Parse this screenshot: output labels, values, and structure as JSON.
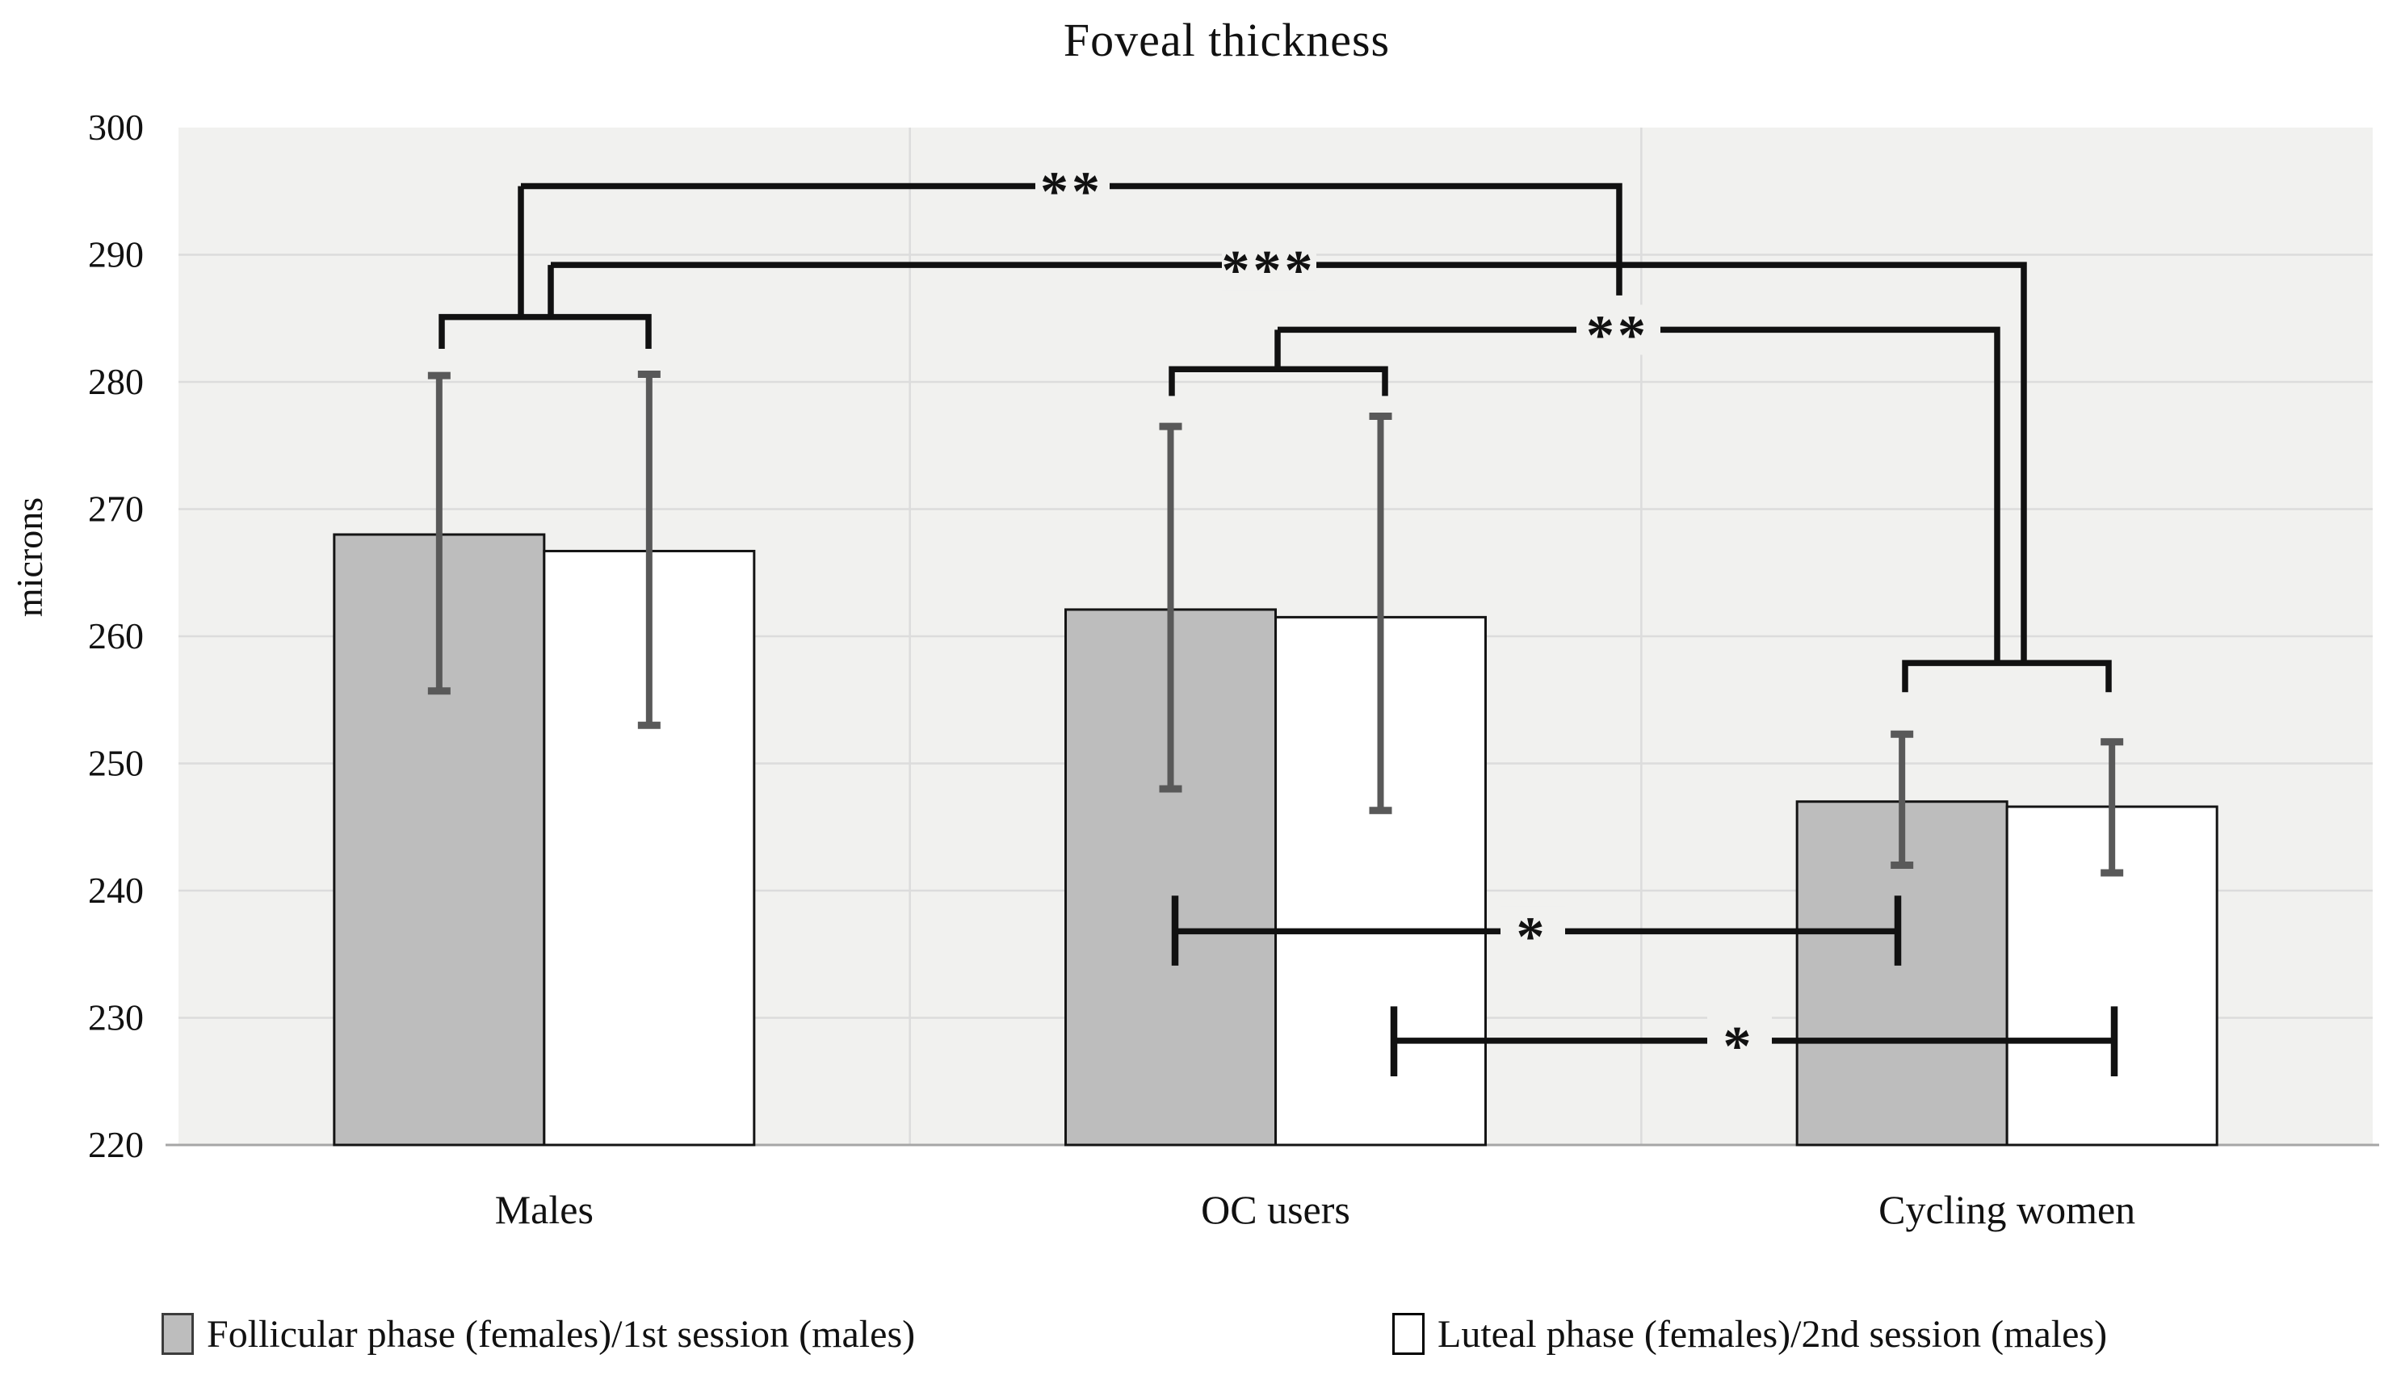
{
  "chart_data": {
    "type": "bar",
    "title": "Foveal thickness",
    "xlabel": "",
    "ylabel": "microns",
    "ylim": [
      220,
      300
    ],
    "ytick_step": 10,
    "grid": true,
    "legend_position": "bottom",
    "categories": [
      "Males",
      "OC users",
      "Cycling women"
    ],
    "series": [
      {
        "name": "Follicular phase (females)/1st session (males)",
        "fill": "#bdbdbd",
        "values": [
          268.0,
          262.1,
          247.0
        ],
        "error_low": [
          255.7,
          248.0,
          242.0
        ],
        "error_high": [
          280.5,
          276.5,
          252.3
        ]
      },
      {
        "name": "Luteal phase (females)/2nd session (males)",
        "fill": "#ffffff",
        "values": [
          266.7,
          261.5,
          246.6
        ],
        "error_low": [
          253.0,
          246.3,
          241.4
        ],
        "error_high": [
          280.6,
          277.3,
          251.7
        ]
      }
    ],
    "significance": [
      {
        "name": "males-pair-bracket",
        "shape": [
          [
            547,
            282.6
          ],
          [
            547,
            285.1
          ],
          [
            803,
            285.1
          ],
          [
            803,
            282.6
          ]
        ]
      },
      {
        "name": "stem-males-to-top-bracket",
        "shape": [
          [
            645,
            285.1
          ],
          [
            645,
            295.4
          ]
        ]
      },
      {
        "name": "stem-males-to-mid-bracket",
        "shape": [
          [
            682,
            285.1
          ],
          [
            682,
            289.2
          ]
        ]
      },
      {
        "name": "top-bracket-males-vs-cycling",
        "label": "**",
        "label_x": 1327,
        "level": 295.4,
        "gap": [
          1282,
          1374
        ],
        "shape": [
          [
            645,
            295.4
          ],
          [
            2005,
            295.4
          ],
          [
            2005,
            286.8
          ]
        ]
      },
      {
        "name": "mid-bracket-males-vs-cycling",
        "label": "***",
        "label_x": 1571,
        "level": 289.2,
        "gap": [
          1513,
          1630
        ],
        "shape": [
          [
            682,
            289.2
          ],
          [
            2506,
            289.2
          ],
          [
            2506,
            257.9
          ]
        ]
      },
      {
        "name": "oc-pair-bracket",
        "shape": [
          [
            1451,
            278.9
          ],
          [
            1451,
            281.0
          ],
          [
            1715,
            281.0
          ],
          [
            1715,
            278.9
          ]
        ]
      },
      {
        "name": "stem-oc-to-low-bracket",
        "shape": [
          [
            1582,
            281.0
          ],
          [
            1582,
            284.1
          ]
        ]
      },
      {
        "name": "low-bracket-oc-vs-cycling",
        "label": "**",
        "label_x": 2003,
        "level": 284.1,
        "gap": [
          1952,
          2056
        ],
        "shape": [
          [
            1582,
            284.1
          ],
          [
            2473,
            284.1
          ],
          [
            2473,
            257.9
          ]
        ]
      },
      {
        "name": "cycling-pair-bracket",
        "shape": [
          [
            2359,
            255.6
          ],
          [
            2359,
            257.9
          ],
          [
            2611,
            257.9
          ],
          [
            2611,
            255.6
          ]
        ]
      },
      {
        "name": "star-line-follicular-oc-vs-cycling",
        "label": "*",
        "label_x": 1897,
        "level": 236.8,
        "gap": [
          1858,
          1938
        ],
        "shape": [
          [
            1455,
            236.8
          ],
          [
            2350,
            236.8
          ]
        ],
        "tcaps": [
          [
            1455,
            234.1,
            239.6
          ],
          [
            2350,
            234.1,
            239.6
          ]
        ]
      },
      {
        "name": "star-line-luteal-oc-vs-cycling",
        "label": "*",
        "label_x": 2153,
        "level": 228.2,
        "gap": [
          2114,
          2194
        ],
        "shape": [
          [
            1726,
            228.2
          ],
          [
            2618,
            228.2
          ]
        ],
        "tcaps": [
          [
            1726,
            225.4,
            230.9
          ],
          [
            2618,
            225.4,
            230.9
          ]
        ]
      }
    ],
    "colors": {
      "plot_bg": "#f1f1ef",
      "gridline": "#dcdcdc",
      "axis_line": "#a6a6a6",
      "bar_border": "#141414",
      "error_bar": "#595959",
      "sig_line": "#111111",
      "text": "#111111"
    }
  }
}
